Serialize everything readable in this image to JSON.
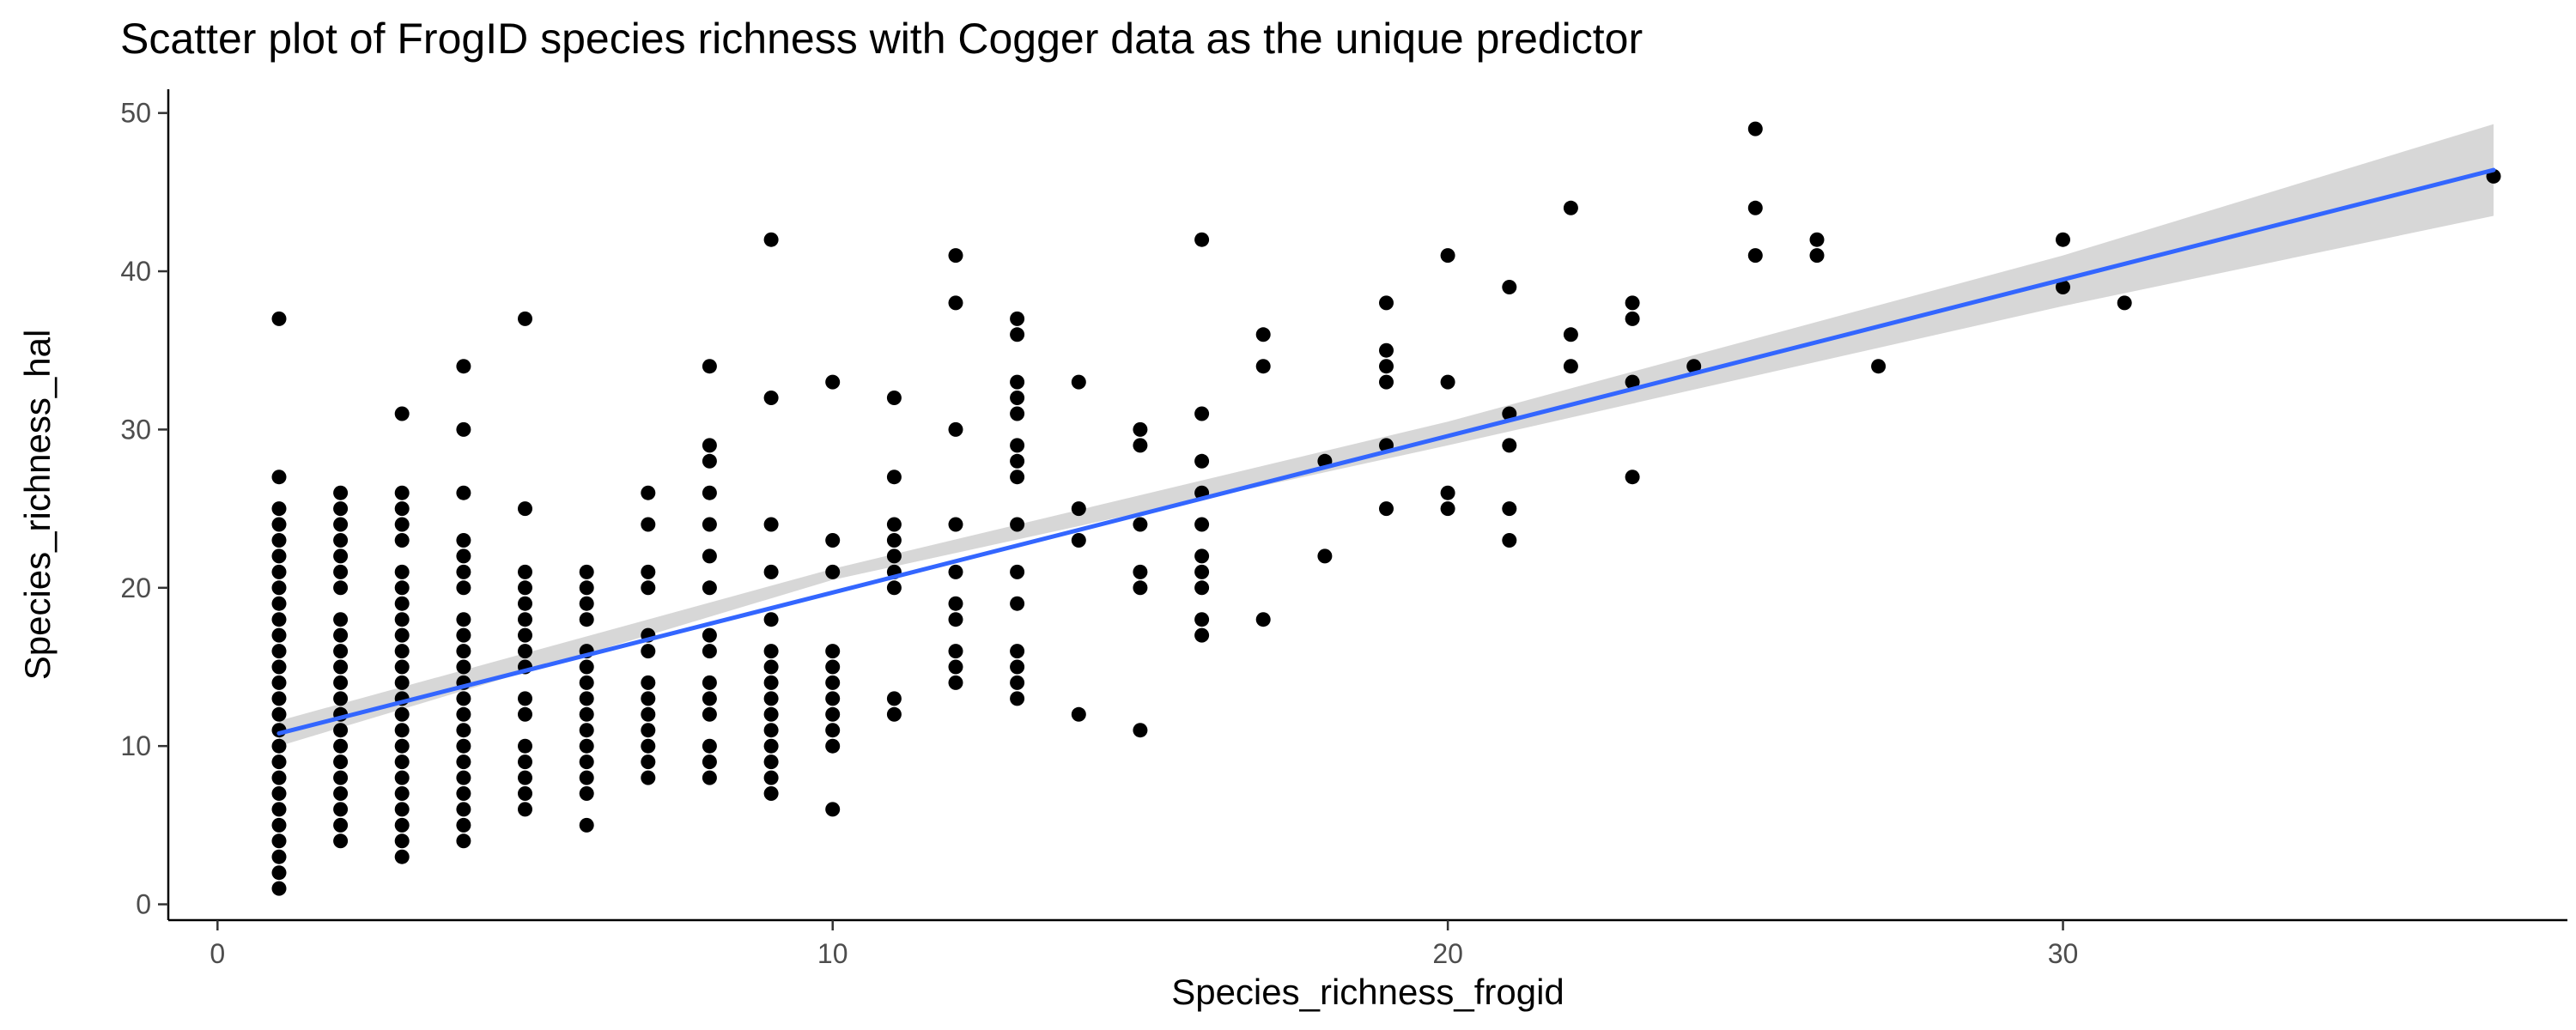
{
  "chart_data": {
    "type": "scatter",
    "title": "Scatter plot of FrogID species richness with Cogger data as the unique predictor",
    "xlabel": "Species_richness_frogid",
    "ylabel": "Species_richness_hal",
    "xlim": [
      -0.8,
      38.2
    ],
    "ylim": [
      -1.0,
      51.5
    ],
    "x_ticks": [
      0,
      10,
      20,
      30
    ],
    "y_ticks": [
      0,
      10,
      20,
      30,
      40,
      50
    ],
    "grid": false,
    "legend": "none",
    "colors": {
      "points": "#000000",
      "fit_line": "#3366FF",
      "confidence_band": "#bdbdbd"
    },
    "points": [
      [
        1,
        1
      ],
      [
        1,
        2
      ],
      [
        1,
        3
      ],
      [
        1,
        4
      ],
      [
        1,
        5
      ],
      [
        1,
        6
      ],
      [
        1,
        7
      ],
      [
        1,
        8
      ],
      [
        1,
        9
      ],
      [
        1,
        10
      ],
      [
        1,
        11
      ],
      [
        1,
        12
      ],
      [
        1,
        13
      ],
      [
        1,
        14
      ],
      [
        1,
        15
      ],
      [
        1,
        16
      ],
      [
        1,
        17
      ],
      [
        1,
        18
      ],
      [
        1,
        19
      ],
      [
        1,
        20
      ],
      [
        1,
        21
      ],
      [
        1,
        22
      ],
      [
        1,
        23
      ],
      [
        1,
        24
      ],
      [
        1,
        25
      ],
      [
        1,
        27
      ],
      [
        1,
        37
      ],
      [
        2,
        4
      ],
      [
        2,
        5
      ],
      [
        2,
        6
      ],
      [
        2,
        7
      ],
      [
        2,
        8
      ],
      [
        2,
        9
      ],
      [
        2,
        10
      ],
      [
        2,
        11
      ],
      [
        2,
        12
      ],
      [
        2,
        13
      ],
      [
        2,
        14
      ],
      [
        2,
        15
      ],
      [
        2,
        16
      ],
      [
        2,
        17
      ],
      [
        2,
        18
      ],
      [
        2,
        20
      ],
      [
        2,
        21
      ],
      [
        2,
        22
      ],
      [
        2,
        23
      ],
      [
        2,
        24
      ],
      [
        2,
        25
      ],
      [
        2,
        26
      ],
      [
        3,
        3
      ],
      [
        3,
        4
      ],
      [
        3,
        5
      ],
      [
        3,
        6
      ],
      [
        3,
        7
      ],
      [
        3,
        8
      ],
      [
        3,
        9
      ],
      [
        3,
        10
      ],
      [
        3,
        11
      ],
      [
        3,
        12
      ],
      [
        3,
        13
      ],
      [
        3,
        14
      ],
      [
        3,
        15
      ],
      [
        3,
        16
      ],
      [
        3,
        17
      ],
      [
        3,
        18
      ],
      [
        3,
        19
      ],
      [
        3,
        20
      ],
      [
        3,
        21
      ],
      [
        3,
        23
      ],
      [
        3,
        24
      ],
      [
        3,
        25
      ],
      [
        3,
        26
      ],
      [
        3,
        31
      ],
      [
        4,
        4
      ],
      [
        4,
        5
      ],
      [
        4,
        6
      ],
      [
        4,
        7
      ],
      [
        4,
        8
      ],
      [
        4,
        9
      ],
      [
        4,
        10
      ],
      [
        4,
        11
      ],
      [
        4,
        12
      ],
      [
        4,
        13
      ],
      [
        4,
        14
      ],
      [
        4,
        15
      ],
      [
        4,
        16
      ],
      [
        4,
        17
      ],
      [
        4,
        18
      ],
      [
        4,
        20
      ],
      [
        4,
        21
      ],
      [
        4,
        22
      ],
      [
        4,
        23
      ],
      [
        4,
        26
      ],
      [
        4,
        30
      ],
      [
        4,
        34
      ],
      [
        5,
        6
      ],
      [
        5,
        7
      ],
      [
        5,
        8
      ],
      [
        5,
        9
      ],
      [
        5,
        10
      ],
      [
        5,
        12
      ],
      [
        5,
        13
      ],
      [
        5,
        15
      ],
      [
        5,
        16
      ],
      [
        5,
        17
      ],
      [
        5,
        18
      ],
      [
        5,
        19
      ],
      [
        5,
        20
      ],
      [
        5,
        21
      ],
      [
        5,
        25
      ],
      [
        5,
        37
      ],
      [
        6,
        5
      ],
      [
        6,
        7
      ],
      [
        6,
        8
      ],
      [
        6,
        9
      ],
      [
        6,
        10
      ],
      [
        6,
        11
      ],
      [
        6,
        12
      ],
      [
        6,
        13
      ],
      [
        6,
        14
      ],
      [
        6,
        15
      ],
      [
        6,
        16
      ],
      [
        6,
        18
      ],
      [
        6,
        19
      ],
      [
        6,
        20
      ],
      [
        6,
        21
      ],
      [
        7,
        8
      ],
      [
        7,
        9
      ],
      [
        7,
        10
      ],
      [
        7,
        11
      ],
      [
        7,
        12
      ],
      [
        7,
        13
      ],
      [
        7,
        14
      ],
      [
        7,
        16
      ],
      [
        7,
        17
      ],
      [
        7,
        20
      ],
      [
        7,
        21
      ],
      [
        7,
        24
      ],
      [
        7,
        26
      ],
      [
        8,
        8
      ],
      [
        8,
        9
      ],
      [
        8,
        10
      ],
      [
        8,
        12
      ],
      [
        8,
        13
      ],
      [
        8,
        14
      ],
      [
        8,
        16
      ],
      [
        8,
        17
      ],
      [
        8,
        20
      ],
      [
        8,
        22
      ],
      [
        8,
        24
      ],
      [
        8,
        26
      ],
      [
        8,
        28
      ],
      [
        8,
        29
      ],
      [
        8,
        34
      ],
      [
        9,
        7
      ],
      [
        9,
        8
      ],
      [
        9,
        9
      ],
      [
        9,
        10
      ],
      [
        9,
        11
      ],
      [
        9,
        12
      ],
      [
        9,
        13
      ],
      [
        9,
        14
      ],
      [
        9,
        15
      ],
      [
        9,
        16
      ],
      [
        9,
        18
      ],
      [
        9,
        21
      ],
      [
        9,
        24
      ],
      [
        9,
        32
      ],
      [
        9,
        42
      ],
      [
        10,
        6
      ],
      [
        10,
        10
      ],
      [
        10,
        11
      ],
      [
        10,
        12
      ],
      [
        10,
        13
      ],
      [
        10,
        14
      ],
      [
        10,
        15
      ],
      [
        10,
        16
      ],
      [
        10,
        21
      ],
      [
        10,
        23
      ],
      [
        10,
        33
      ],
      [
        11,
        12
      ],
      [
        11,
        13
      ],
      [
        11,
        20
      ],
      [
        11,
        21
      ],
      [
        11,
        22
      ],
      [
        11,
        23
      ],
      [
        11,
        24
      ],
      [
        11,
        27
      ],
      [
        11,
        32
      ],
      [
        12,
        14
      ],
      [
        12,
        15
      ],
      [
        12,
        16
      ],
      [
        12,
        18
      ],
      [
        12,
        19
      ],
      [
        12,
        21
      ],
      [
        12,
        24
      ],
      [
        12,
        30
      ],
      [
        12,
        38
      ],
      [
        12,
        41
      ],
      [
        13,
        13
      ],
      [
        13,
        14
      ],
      [
        13,
        15
      ],
      [
        13,
        16
      ],
      [
        13,
        19
      ],
      [
        13,
        21
      ],
      [
        13,
        24
      ],
      [
        13,
        27
      ],
      [
        13,
        28
      ],
      [
        13,
        29
      ],
      [
        13,
        31
      ],
      [
        13,
        32
      ],
      [
        13,
        33
      ],
      [
        13,
        36
      ],
      [
        13,
        37
      ],
      [
        14,
        12
      ],
      [
        14,
        23
      ],
      [
        14,
        25
      ],
      [
        14,
        33
      ],
      [
        15,
        11
      ],
      [
        15,
        20
      ],
      [
        15,
        21
      ],
      [
        15,
        24
      ],
      [
        15,
        29
      ],
      [
        15,
        30
      ],
      [
        16,
        17
      ],
      [
        16,
        18
      ],
      [
        16,
        20
      ],
      [
        16,
        21
      ],
      [
        16,
        22
      ],
      [
        16,
        24
      ],
      [
        16,
        26
      ],
      [
        16,
        28
      ],
      [
        16,
        31
      ],
      [
        16,
        42
      ],
      [
        17,
        18
      ],
      [
        17,
        34
      ],
      [
        17,
        36
      ],
      [
        18,
        22
      ],
      [
        18,
        28
      ],
      [
        19,
        25
      ],
      [
        19,
        29
      ],
      [
        19,
        33
      ],
      [
        19,
        34
      ],
      [
        19,
        35
      ],
      [
        19,
        38
      ],
      [
        20,
        25
      ],
      [
        20,
        26
      ],
      [
        20,
        33
      ],
      [
        20,
        41
      ],
      [
        21,
        23
      ],
      [
        21,
        25
      ],
      [
        21,
        29
      ],
      [
        21,
        31
      ],
      [
        21,
        39
      ],
      [
        22,
        34
      ],
      [
        22,
        36
      ],
      [
        22,
        44
      ],
      [
        23,
        27
      ],
      [
        23,
        33
      ],
      [
        23,
        37
      ],
      [
        23,
        38
      ],
      [
        24,
        34
      ],
      [
        25,
        41
      ],
      [
        25,
        44
      ],
      [
        25,
        49
      ],
      [
        26,
        41
      ],
      [
        26,
        42
      ],
      [
        27,
        34
      ],
      [
        30,
        39
      ],
      [
        30,
        42
      ],
      [
        31,
        38
      ],
      [
        37,
        46
      ]
    ],
    "fit_line": {
      "x": [
        1,
        37
      ],
      "y": [
        10.8,
        46.4
      ]
    },
    "confidence_band": {
      "x": [
        1,
        10,
        20,
        30,
        37
      ],
      "lower": [
        10.0,
        20.5,
        29.0,
        37.8,
        43.5
      ],
      "upper": [
        11.6,
        21.2,
        30.5,
        41.0,
        49.3
      ]
    }
  }
}
